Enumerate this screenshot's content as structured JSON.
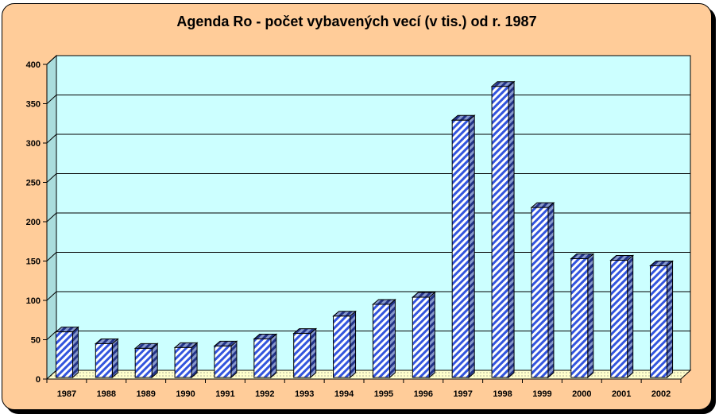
{
  "chart_data": {
    "type": "bar",
    "title": "Agenda Ro - počet vybavených vecí (v tis.) od r. 1987",
    "xlabel": "",
    "ylabel": "",
    "ylim": [
      0,
      400
    ],
    "yticks": [
      0,
      50,
      100,
      150,
      200,
      250,
      300,
      350,
      400
    ],
    "categories": [
      "1987",
      "1988",
      "1989",
      "1990",
      "1991",
      "1992",
      "1993",
      "1994",
      "1995",
      "1996",
      "1997",
      "1998",
      "1999",
      "2000",
      "2001",
      "2002"
    ],
    "values": [
      60,
      45,
      39,
      40,
      42,
      51,
      58,
      80,
      95,
      104,
      329,
      372,
      218,
      153,
      151,
      144
    ],
    "grid": true,
    "legend": "none",
    "colors": {
      "frame": "#ffcc99",
      "plot_wall": "#ccffff",
      "floor": "#ffffcc",
      "bar_hatch": "#3355dd",
      "bar_side": "#2244aa",
      "bar_top": "#aabbee"
    }
  }
}
